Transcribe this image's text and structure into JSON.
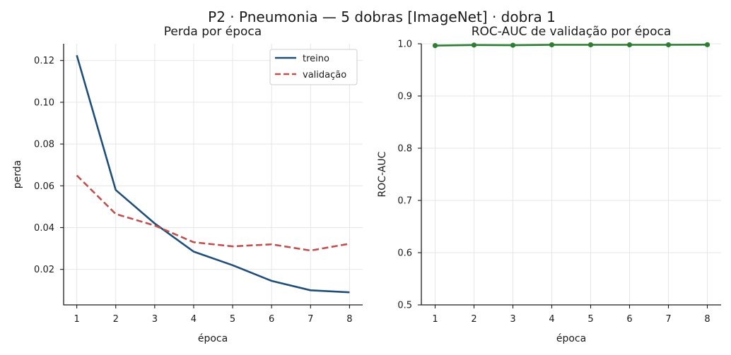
{
  "figure": {
    "suptitle": "P2 · Pneumonia — 5 dobras [ImageNet] · dobra 1"
  },
  "chart_data": [
    {
      "type": "line",
      "title": "Perda por época",
      "xlabel": "época",
      "ylabel": "perda",
      "x": [
        1,
        2,
        3,
        4,
        5,
        6,
        7,
        8
      ],
      "xticks": [
        "1",
        "2",
        "3",
        "4",
        "5",
        "6",
        "7",
        "8"
      ],
      "yticks": [
        "0.02",
        "0.04",
        "0.06",
        "0.08",
        "0.10",
        "0.12"
      ],
      "ylim": [
        0.003,
        0.128
      ],
      "grid": true,
      "legend_position": "top-right",
      "series": [
        {
          "name": "treino",
          "style": "solid",
          "color": "#1f4e79",
          "values": [
            0.1225,
            0.058,
            0.042,
            0.0285,
            0.022,
            0.0145,
            0.01,
            0.009
          ]
        },
        {
          "name": "validação",
          "style": "dashed",
          "color": "#c0504d",
          "values": [
            0.065,
            0.0465,
            0.041,
            0.033,
            0.031,
            0.032,
            0.029,
            0.0323
          ]
        }
      ]
    },
    {
      "type": "line",
      "title": "ROC-AUC de validação por época",
      "xlabel": "época",
      "ylabel": "ROC-AUC",
      "x": [
        1,
        2,
        3,
        4,
        5,
        6,
        7,
        8
      ],
      "xticks": [
        "1",
        "2",
        "3",
        "4",
        "5",
        "6",
        "7",
        "8"
      ],
      "yticks": [
        "0.5",
        "0.6",
        "0.7",
        "0.8",
        "0.9",
        "1.0"
      ],
      "ylim": [
        0.5,
        1.0
      ],
      "grid": true,
      "series": [
        {
          "style": "solid",
          "markers": true,
          "color": "#2e7d32",
          "values": [
            0.9965,
            0.9975,
            0.9972,
            0.998,
            0.998,
            0.998,
            0.998,
            0.9982
          ]
        }
      ]
    }
  ]
}
